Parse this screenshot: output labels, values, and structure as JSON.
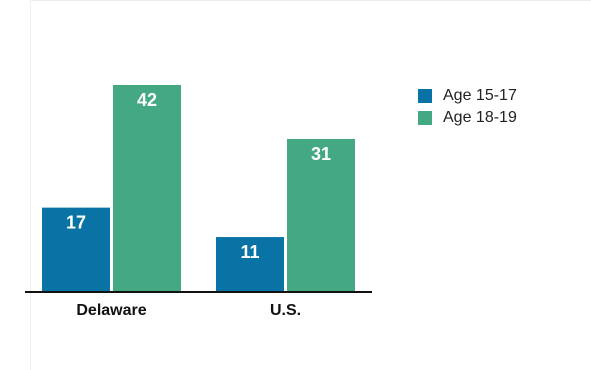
{
  "chart_data": {
    "type": "bar",
    "title": "",
    "xlabel": "",
    "ylabel": "",
    "categories": [
      "Delaware",
      "U.S."
    ],
    "series": [
      {
        "name": "Age 15-17",
        "color": "#0a73a5",
        "values": [
          17,
          11
        ]
      },
      {
        "name": "Age 18-19",
        "color": "#44a983",
        "values": [
          42,
          31
        ]
      }
    ],
    "ylim": [
      0,
      42
    ],
    "grid": false,
    "legend_position": "top-right",
    "data_labels": true
  }
}
